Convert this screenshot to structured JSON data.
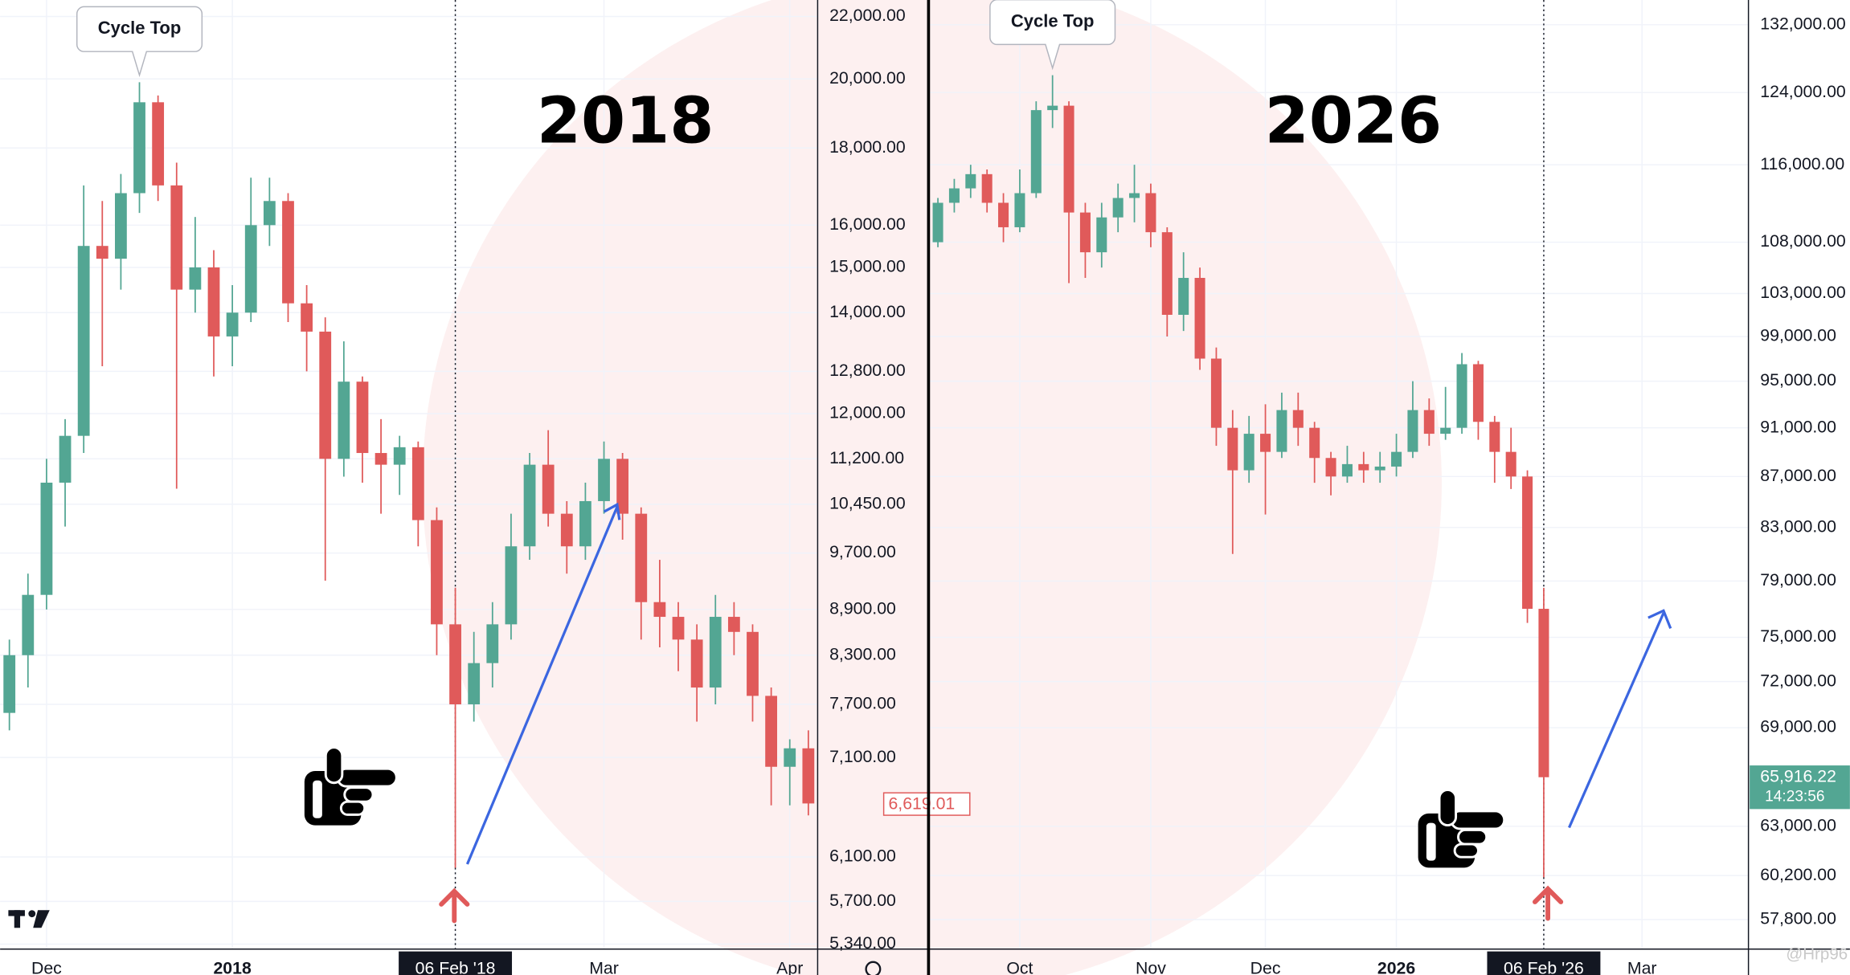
{
  "chart_data": [
    {
      "type": "candlestick",
      "title": "2018",
      "annotation": "Cycle Top",
      "categories": [
        null,
        null,
        "Dec",
        null,
        null,
        null,
        null,
        null,
        null,
        null,
        null,
        null,
        "2018",
        null,
        null,
        null,
        null,
        null,
        null,
        null,
        null,
        null,
        null,
        null,
        "06 Feb '18",
        null,
        null,
        null,
        null,
        null,
        null,
        null,
        "Mar",
        null,
        null,
        null,
        null,
        null,
        null,
        null,
        null,
        null,
        "Apr",
        null
      ],
      "open": [
        7600,
        8300,
        9100,
        10800,
        11600,
        15500,
        15200,
        16800,
        19300,
        17000,
        14500,
        15000,
        13500,
        14000,
        16000,
        16600,
        14200,
        13600,
        11200,
        12600,
        11300,
        11100,
        11400,
        10200,
        8700,
        7700,
        8200,
        8700,
        9800,
        11100,
        10300,
        9800,
        10500,
        11200,
        10300,
        9000,
        8800,
        8500,
        7900,
        8800,
        8600,
        7800,
        7000,
        7200
      ],
      "high": [
        8500,
        9400,
        11200,
        11900,
        17000,
        16600,
        17300,
        19900,
        19500,
        17600,
        16200,
        15400,
        14600,
        17200,
        17200,
        16800,
        14600,
        13900,
        13400,
        12700,
        11900,
        11600,
        11500,
        10400,
        9200,
        8600,
        9000,
        10300,
        11300,
        11700,
        10500,
        10800,
        11500,
        11300,
        10400,
        9600,
        9000,
        8700,
        9100,
        9000,
        8700,
        7900,
        7300,
        7400
      ],
      "low": [
        7400,
        7900,
        8900,
        10100,
        11300,
        12900,
        14500,
        16300,
        16600,
        10700,
        14000,
        12700,
        12900,
        13800,
        15500,
        13800,
        12800,
        9300,
        10900,
        10800,
        10300,
        10600,
        9800,
        8300,
        6000,
        7500,
        7900,
        8500,
        9600,
        10100,
        9400,
        9600,
        10300,
        9900,
        8500,
        8400,
        8100,
        7500,
        7700,
        8300,
        7500,
        6600,
        6600,
        6500
      ],
      "close": [
        8300,
        9100,
        10800,
        11600,
        15500,
        15200,
        16800,
        19300,
        17000,
        14500,
        15000,
        13500,
        14000,
        16000,
        16600,
        14200,
        13600,
        11200,
        12600,
        11300,
        11100,
        11400,
        10200,
        8700,
        7700,
        8200,
        8700,
        9800,
        11100,
        10300,
        9800,
        10500,
        11200,
        10300,
        9000,
        8800,
        8500,
        7900,
        8800,
        8600,
        7800,
        7000,
        7200,
        6619.01
      ],
      "up_color": "#53a693",
      "down_color": "#e05a5a",
      "log_scale": true,
      "grid": true,
      "ylim": [
        5300,
        22560
      ],
      "yticks": [
        {
          "value": 22000,
          "label": "22,000.00"
        },
        {
          "value": 20000,
          "label": "20,000.00"
        },
        {
          "value": 18000,
          "label": "18,000.00"
        },
        {
          "value": 16000,
          "label": "16,000.00"
        },
        {
          "value": 15000,
          "label": "15,000.00"
        },
        {
          "value": 14000,
          "label": "14,000.00"
        },
        {
          "value": 12800,
          "label": "12,800.00"
        },
        {
          "value": 12000,
          "label": "12,000.00"
        },
        {
          "value": 11200,
          "label": "11,200.00"
        },
        {
          "value": 10450,
          "label": "10,450.00"
        },
        {
          "value": 9700,
          "label": "9,700.00"
        },
        {
          "value": 8900,
          "label": "8,900.00"
        },
        {
          "value": 8300,
          "label": "8,300.00"
        },
        {
          "value": 7700,
          "label": "7,700.00"
        },
        {
          "value": 7100,
          "label": "7,100.00"
        },
        {
          "value": 6100,
          "label": "6,100.00"
        },
        {
          "value": 5700,
          "label": "5,700.00"
        },
        {
          "value": 5340,
          "label": "5,340.00"
        }
      ],
      "last_price": {
        "value": 6619.01,
        "label": "6,619.01"
      }
    },
    {
      "type": "candlestick",
      "title": "2026",
      "annotation": "Cycle Top",
      "categories": [
        null,
        null,
        null,
        null,
        null,
        "Oct",
        null,
        null,
        null,
        null,
        null,
        null,
        null,
        "Nov",
        null,
        null,
        null,
        null,
        null,
        null,
        "Dec",
        null,
        null,
        null,
        null,
        null,
        null,
        null,
        "2026",
        null,
        null,
        null,
        null,
        null,
        null,
        null,
        null,
        "06 Feb '26",
        null,
        null,
        null,
        null,
        null,
        "Mar",
        null,
        null,
        null,
        null,
        null,
        null
      ],
      "open": [
        108000,
        112000,
        113500,
        115000,
        112000,
        109500,
        113000,
        122000,
        122500,
        111000,
        107000,
        110500,
        112500,
        113000,
        109000,
        101000,
        104500,
        97000,
        91000,
        87500,
        90500,
        89000,
        92500,
        91000,
        88500,
        87000,
        88000,
        87500,
        87800,
        89000,
        92500,
        90500,
        91000,
        96500,
        91500,
        89000,
        87000,
        77000,
        null,
        null,
        null,
        null,
        null,
        null,
        null,
        null,
        null,
        null,
        null,
        null
      ],
      "high": [
        112500,
        114500,
        116000,
        115500,
        113000,
        115500,
        123000,
        126000,
        123000,
        112000,
        112000,
        114000,
        116000,
        114000,
        109500,
        107000,
        105500,
        98000,
        92500,
        92000,
        93000,
        94000,
        94000,
        91500,
        89000,
        89500,
        89000,
        89000,
        90500,
        95000,
        93500,
        94500,
        97500,
        96800,
        92000,
        91000,
        87500,
        78500,
        null,
        null,
        null,
        null,
        null,
        null,
        null,
        null,
        null,
        null,
        null,
        null
      ],
      "low": [
        107500,
        111000,
        112500,
        111000,
        108000,
        109000,
        112500,
        120000,
        104000,
        104500,
        105500,
        109000,
        110000,
        107500,
        99000,
        99500,
        96000,
        89500,
        81000,
        86500,
        84000,
        88500,
        89500,
        86500,
        85500,
        86500,
        86500,
        86500,
        87000,
        88500,
        89500,
        90000,
        90500,
        90000,
        86500,
        86000,
        76000,
        60100,
        null,
        null,
        null,
        null,
        null,
        null,
        null,
        null,
        null,
        null,
        null,
        null
      ],
      "close": [
        112000,
        113500,
        115000,
        112000,
        109500,
        113000,
        122000,
        122500,
        111000,
        107000,
        110500,
        112500,
        113000,
        109000,
        101000,
        104500,
        97000,
        91000,
        87500,
        90500,
        89000,
        92500,
        91000,
        88500,
        87000,
        88000,
        87500,
        87800,
        89000,
        92500,
        90500,
        91000,
        96500,
        91500,
        89000,
        87000,
        77000,
        65916.22,
        null,
        null,
        null,
        null,
        null,
        null,
        null,
        null,
        null,
        null,
        null,
        null
      ],
      "up_color": "#53a693",
      "down_color": "#e05a5a",
      "log_scale": true,
      "grid": true,
      "ylim": [
        56250,
        135050
      ],
      "yticks": [
        {
          "value": 132000,
          "label": "132,000.00"
        },
        {
          "value": 124000,
          "label": "124,000.00"
        },
        {
          "value": 116000,
          "label": "116,000.00"
        },
        {
          "value": 108000,
          "label": "108,000.00"
        },
        {
          "value": 103000,
          "label": "103,000.00"
        },
        {
          "value": 99000,
          "label": "99,000.00"
        },
        {
          "value": 95000,
          "label": "95,000.00"
        },
        {
          "value": 91000,
          "label": "91,000.00"
        },
        {
          "value": 87000,
          "label": "87,000.00"
        },
        {
          "value": 83000,
          "label": "83,000.00"
        },
        {
          "value": 79000,
          "label": "79,000.00"
        },
        {
          "value": 75000,
          "label": "75,000.00"
        },
        {
          "value": 72000,
          "label": "72,000.00"
        },
        {
          "value": 69000,
          "label": "69,000.00"
        },
        {
          "value": 63000,
          "label": "63,000.00"
        },
        {
          "value": 60200,
          "label": "60,200.00"
        },
        {
          "value": 57800,
          "label": "57,800.00"
        }
      ],
      "last_price": {
        "value": 65916.22,
        "label": "65,916.22"
      },
      "countdown": "14:23:56"
    }
  ],
  "watermark": "@Hrp96"
}
